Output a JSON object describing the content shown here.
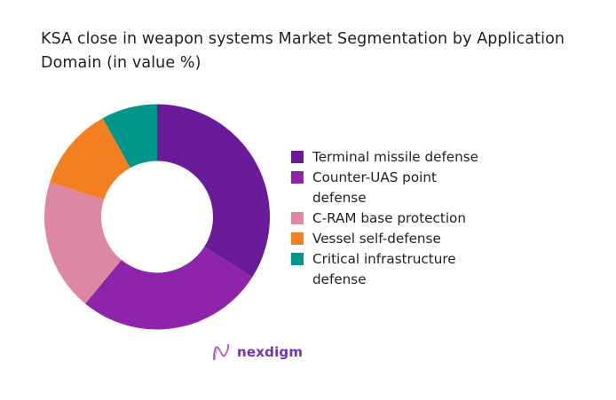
{
  "title": "KSA close in weapon systems Market Segmentation by Application Domain (in value %)",
  "chart_data": {
    "type": "pie",
    "subtype": "donut",
    "title": "KSA close in weapon systems Market Segmentation by Application Domain (in value %)",
    "categories": [
      "Terminal missile defense",
      "Counter-UAS point defense",
      "C-RAM base protection",
      "Vessel self-defense",
      "Critical infrastructure defense"
    ],
    "values": [
      34,
      27,
      19,
      12,
      8
    ],
    "colors": [
      "#6a1b9a",
      "#8e24aa",
      "#de87a2",
      "#f47f20",
      "#00968a"
    ],
    "start_angle": "12 o'clock, clockwise",
    "legend_position": "right",
    "data_labels": false
  },
  "legend": {
    "items": [
      {
        "label": "Terminal missile defense",
        "color": "#6a1b9a"
      },
      {
        "label": "Counter-UAS point defense",
        "color": "#8e24aa"
      },
      {
        "label": "C-RAM base protection",
        "color": "#de87a2"
      },
      {
        "label": "Vessel self-defense",
        "color": "#f47f20"
      },
      {
        "label": "Critical infrastructure defense",
        "color": "#00968a"
      }
    ]
  },
  "logo": {
    "text": "nexdigm"
  }
}
